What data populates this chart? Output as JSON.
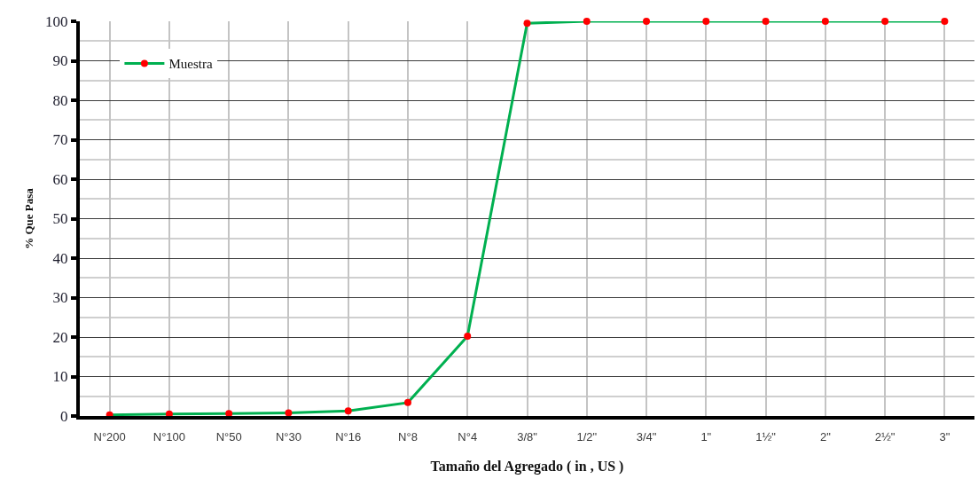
{
  "chart_data": {
    "type": "line",
    "xlabel": "Tamaño del Agregado ( in , US )",
    "ylabel": "% Que Pasa",
    "categories": [
      "N°200",
      "N°100",
      "N°50",
      "N°30",
      "N°16",
      "N°8",
      "N°4",
      "3/8\"",
      "1/2\"",
      "3/4\"",
      "1\"",
      "1½\"",
      "2\"",
      "2½\"",
      "3\""
    ],
    "series": [
      {
        "name": "Muestra",
        "color": "#00b050",
        "colors": [
          "#ff0000",
          "#ff0000",
          "#ff0000",
          "#ff0000",
          "#ff0000",
          "#ff0000",
          "#ff0000",
          "#ff0000",
          "#ff0000",
          "#ff0000",
          "#ff0000",
          "#ff0000",
          "#ff0000",
          "#ff0000",
          "#ff0000"
        ],
        "values": [
          0.3,
          0.5,
          0.6,
          0.8,
          1.3,
          3.4,
          20.2,
          99.5,
          100,
          100,
          100,
          100,
          100,
          100,
          100
        ]
      }
    ],
    "ylim": [
      0,
      100
    ],
    "yticks": [
      0,
      10,
      20,
      30,
      40,
      50,
      60,
      70,
      80,
      90,
      100
    ],
    "grid": true,
    "legend": "top left",
    "marker": "circle",
    "line_style": "solid"
  }
}
